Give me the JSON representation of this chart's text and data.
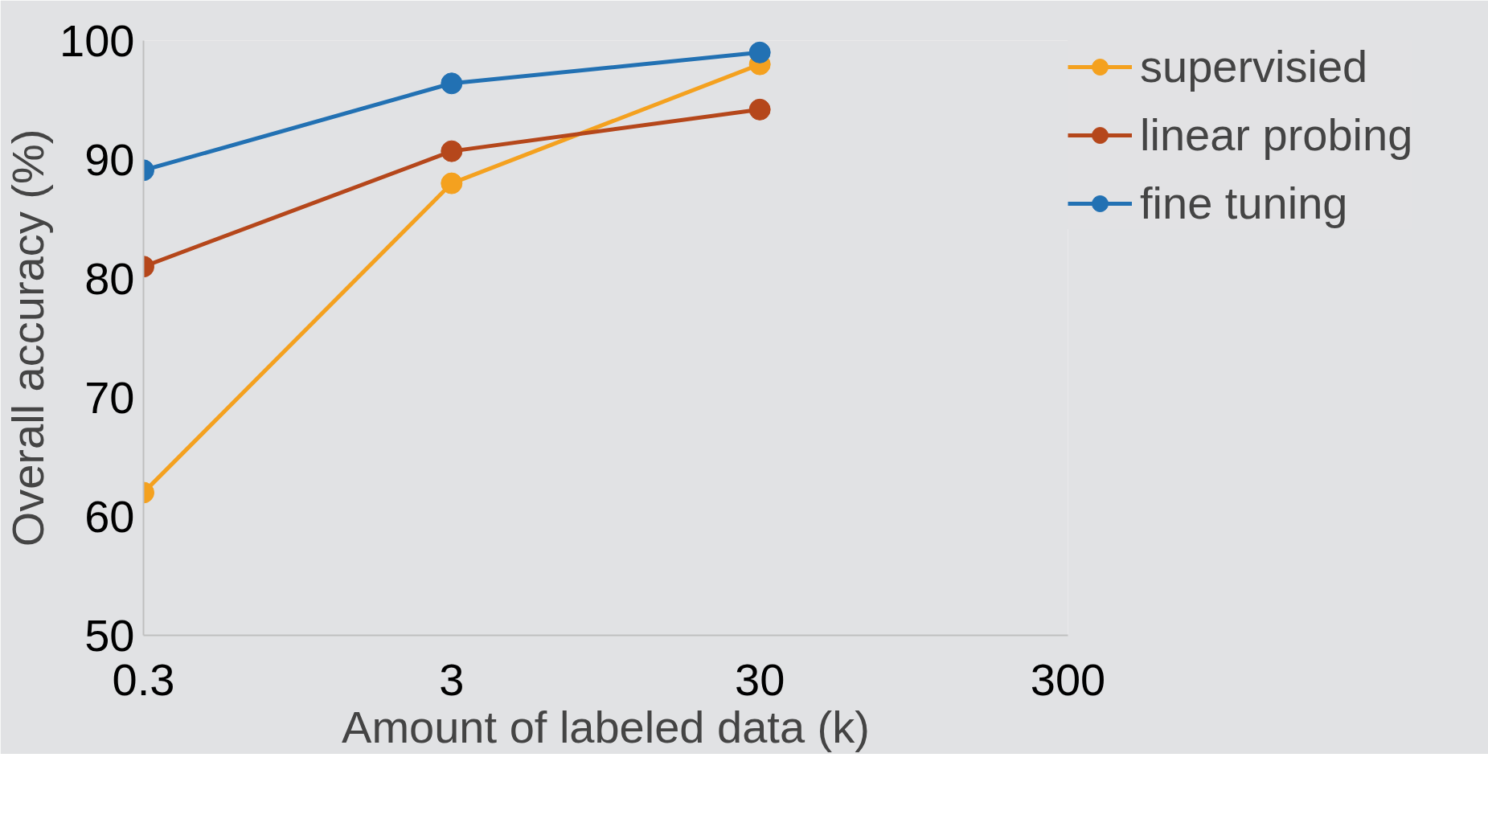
{
  "chart_data": {
    "type": "line",
    "xlabel": "Amount of labeled data (k)",
    "ylabel": "Overall accuracy (%)",
    "x": [
      0.3,
      3,
      30
    ],
    "series": [
      {
        "name": "supervisied",
        "color": "#f4a11f",
        "values": [
          62,
          88,
          98
        ]
      },
      {
        "name": "linear probing",
        "color": "#b5471b",
        "values": [
          81,
          90.7,
          94.2
        ]
      },
      {
        "name": "fine tuning",
        "color": "#2271b3",
        "values": [
          89.1,
          96.4,
          99
        ]
      }
    ],
    "log": "x",
    "xlim": [
      0.3,
      300
    ],
    "xticks": [
      0.3,
      3,
      30,
      300
    ],
    "ylim": [
      50,
      100
    ],
    "yticks": [
      50,
      60,
      70,
      80,
      90,
      100
    ],
    "legend": "top right",
    "marker": "circle",
    "line_style": "solid"
  }
}
